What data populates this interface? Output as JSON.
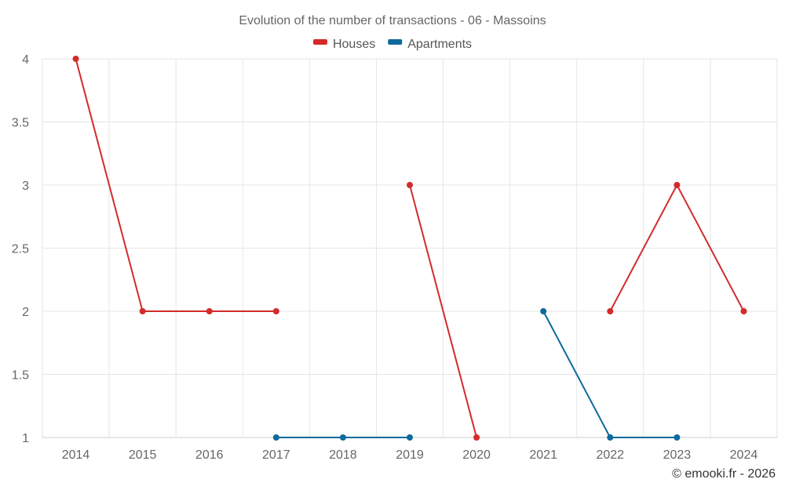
{
  "chart_data": {
    "type": "line",
    "title": "Evolution of the number of transactions - 06 - Massoins",
    "categories": [
      "2014",
      "2015",
      "2016",
      "2017",
      "2018",
      "2019",
      "2020",
      "2021",
      "2022",
      "2023",
      "2024"
    ],
    "y_ticks": [
      "1",
      "1.5",
      "2",
      "2.5",
      "3",
      "3.5",
      "4"
    ],
    "ylim": [
      1,
      4
    ],
    "grid": true,
    "legend_position": "top-center",
    "series": [
      {
        "name": "Houses",
        "color": "#d32b2b",
        "values": [
          4,
          2,
          2,
          2,
          null,
          3,
          1,
          null,
          2,
          3,
          2
        ]
      },
      {
        "name": "Apartments",
        "color": "#0e6a9c",
        "values": [
          null,
          null,
          null,
          1,
          1,
          1,
          null,
          2,
          1,
          1,
          null
        ]
      }
    ]
  },
  "credit": "© emooki.fr - 2026"
}
